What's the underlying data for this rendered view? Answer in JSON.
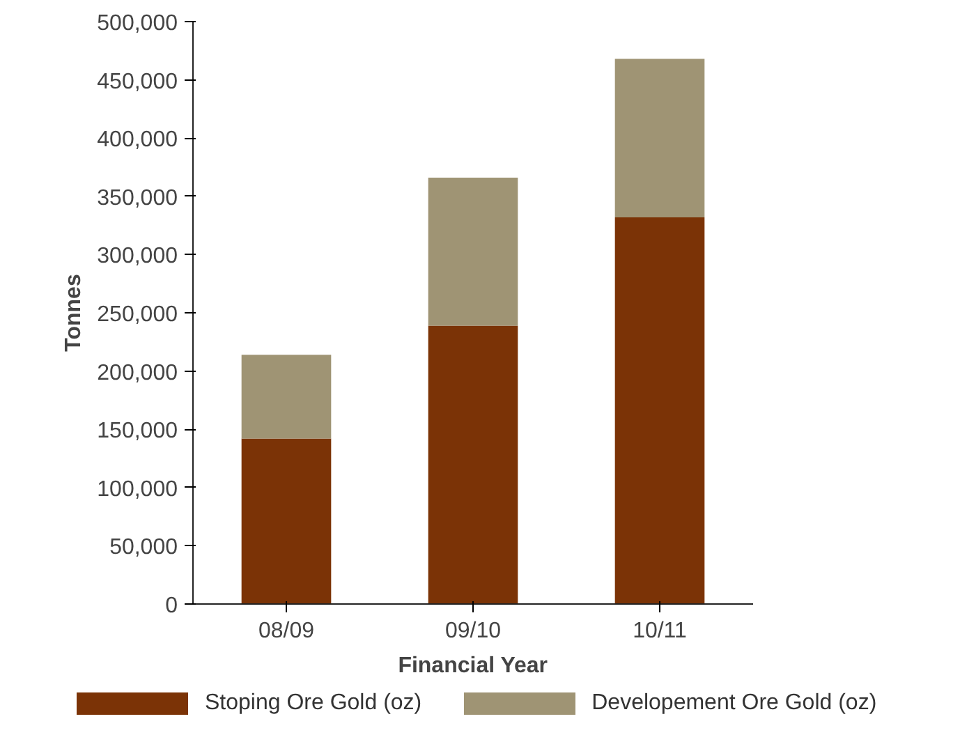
{
  "chart_data": {
    "type": "bar",
    "stacked": true,
    "xlabel": "Financial Year",
    "ylabel": "Tonnes",
    "categories": [
      "08/09",
      "09/10",
      "10/11"
    ],
    "series": [
      {
        "name": "Stoping Ore Gold (oz)",
        "color": "#7b3306",
        "values": [
          142000,
          239000,
          332000
        ]
      },
      {
        "name": "Developement Ore Gold (oz)",
        "color": "#9f9474",
        "values": [
          72000,
          127000,
          136000
        ]
      }
    ],
    "ylim": [
      0,
      500000
    ],
    "yticks": [
      {
        "value": 0,
        "label": "0"
      },
      {
        "value": 50000,
        "label": "50,000"
      },
      {
        "value": 100000,
        "label": "100,000"
      },
      {
        "value": 150000,
        "label": "150,000"
      },
      {
        "value": 200000,
        "label": "200,000"
      },
      {
        "value": 250000,
        "label": "250,000"
      },
      {
        "value": 300000,
        "label": "300,000"
      },
      {
        "value": 350000,
        "label": "350,000"
      },
      {
        "value": 400000,
        "label": "400,000"
      },
      {
        "value": 450000,
        "label": "450,000"
      },
      {
        "value": 500000,
        "label": "500,000"
      }
    ],
    "grid": false,
    "legend": "bottom"
  }
}
